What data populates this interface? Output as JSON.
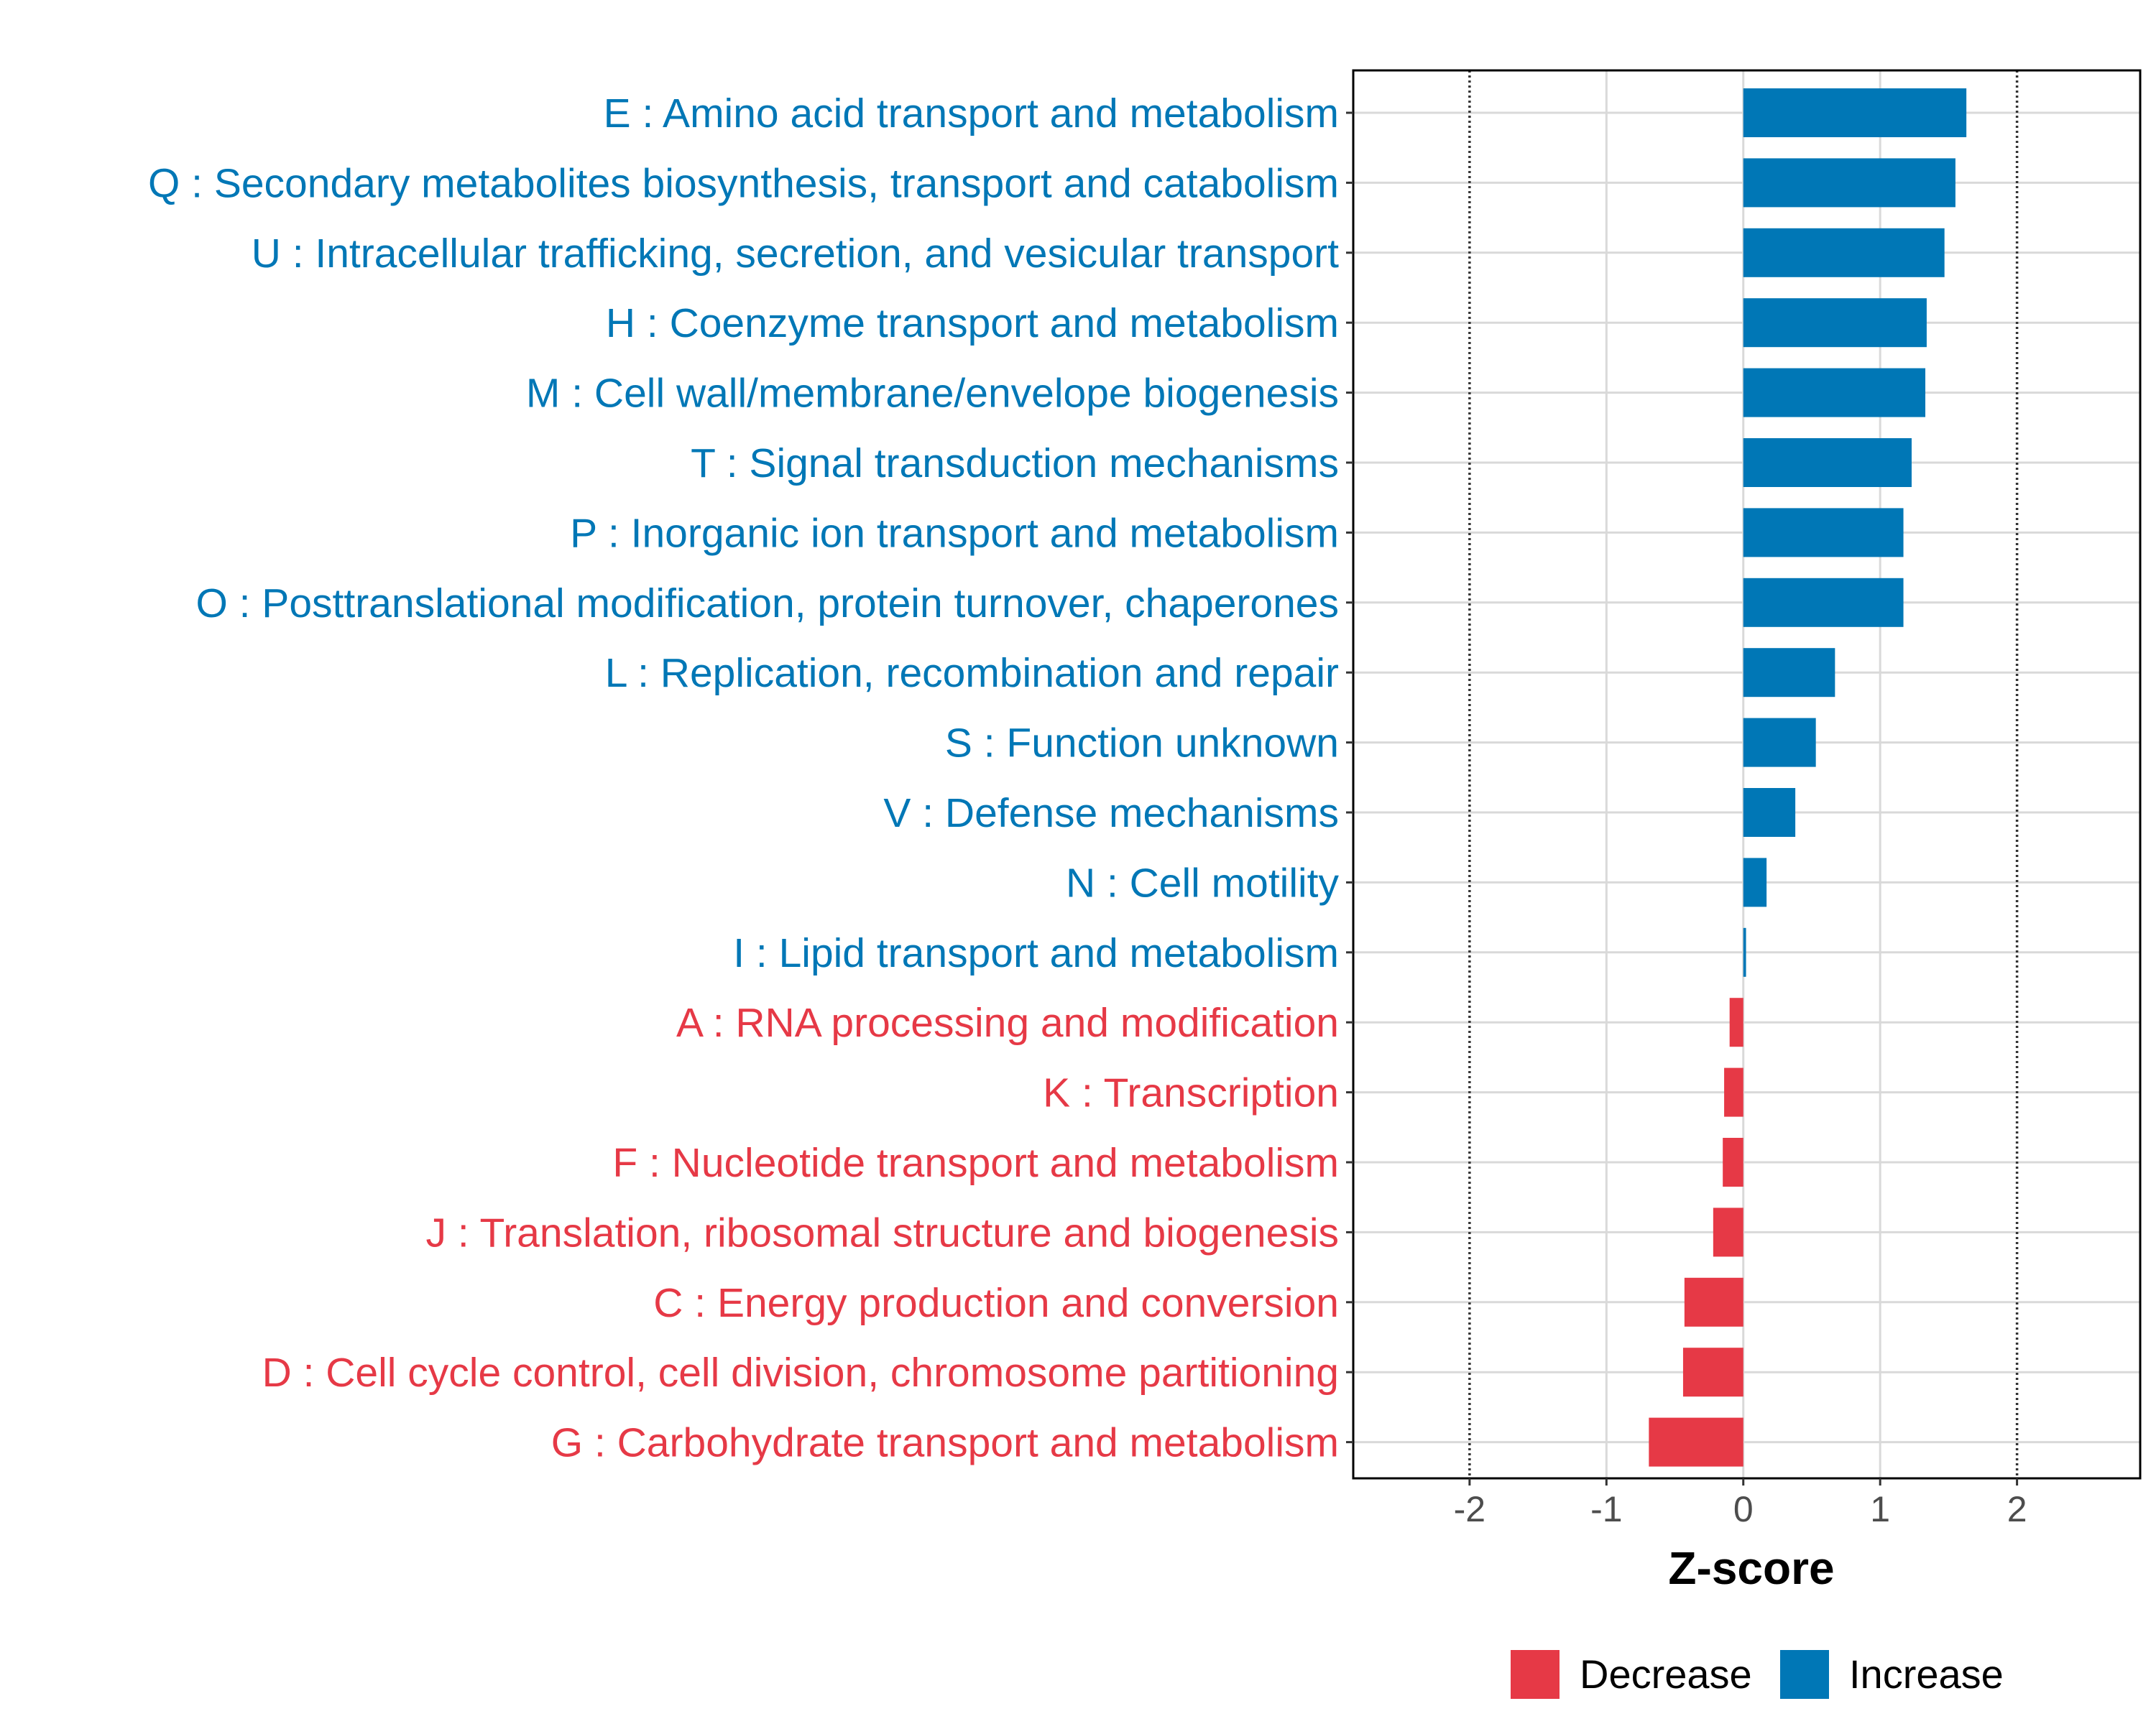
{
  "chart_data": {
    "type": "bar",
    "orientation": "horizontal",
    "title": "",
    "xlabel": "Z-score",
    "ylabel": "",
    "xlim": [
      -2.85,
      2.9
    ],
    "xticks": [
      -2,
      -1,
      0,
      1,
      2
    ],
    "xtick_labels": [
      "-2",
      "-1",
      "0",
      "1",
      "2"
    ],
    "reference_lines": [
      -2,
      2
    ],
    "grid": true,
    "categories": [
      "E : Amino acid transport and metabolism",
      "Q : Secondary metabolites biosynthesis, transport and catabolism",
      "U : Intracellular trafficking, secretion, and vesicular transport",
      "H : Coenzyme transport and metabolism",
      "M : Cell wall/membrane/envelope biogenesis",
      "T : Signal transduction mechanisms",
      "P : Inorganic ion transport and metabolism",
      "O : Posttranslational modification, protein turnover, chaperones",
      "L : Replication, recombination and repair",
      "S : Function unknown",
      "V : Defense mechanisms",
      "N : Cell motility",
      "I : Lipid transport and metabolism",
      "A : RNA processing and modification",
      "K : Transcription",
      "F : Nucleotide transport and metabolism",
      "J : Translation, ribosomal structure and biogenesis",
      "C : Energy production and conversion",
      "D : Cell cycle control, cell division, chromosome partitioning",
      "G : Carbohydrate transport and metabolism"
    ],
    "values": [
      1.63,
      1.55,
      1.47,
      1.34,
      1.33,
      1.23,
      1.17,
      1.17,
      0.67,
      0.53,
      0.38,
      0.17,
      0.02,
      -0.1,
      -0.14,
      -0.15,
      -0.22,
      -0.43,
      -0.44,
      -0.69
    ],
    "groups": [
      "Increase",
      "Increase",
      "Increase",
      "Increase",
      "Increase",
      "Increase",
      "Increase",
      "Increase",
      "Increase",
      "Increase",
      "Increase",
      "Increase",
      "Increase",
      "Decrease",
      "Decrease",
      "Decrease",
      "Decrease",
      "Decrease",
      "Decrease",
      "Decrease"
    ],
    "legend": {
      "position": "bottom",
      "items": [
        {
          "label": "Decrease",
          "color": "#E63946"
        },
        {
          "label": "Increase",
          "color": "#0077B6"
        }
      ]
    },
    "colors": {
      "Decrease": "#E63946",
      "Increase": "#0077B6"
    }
  }
}
